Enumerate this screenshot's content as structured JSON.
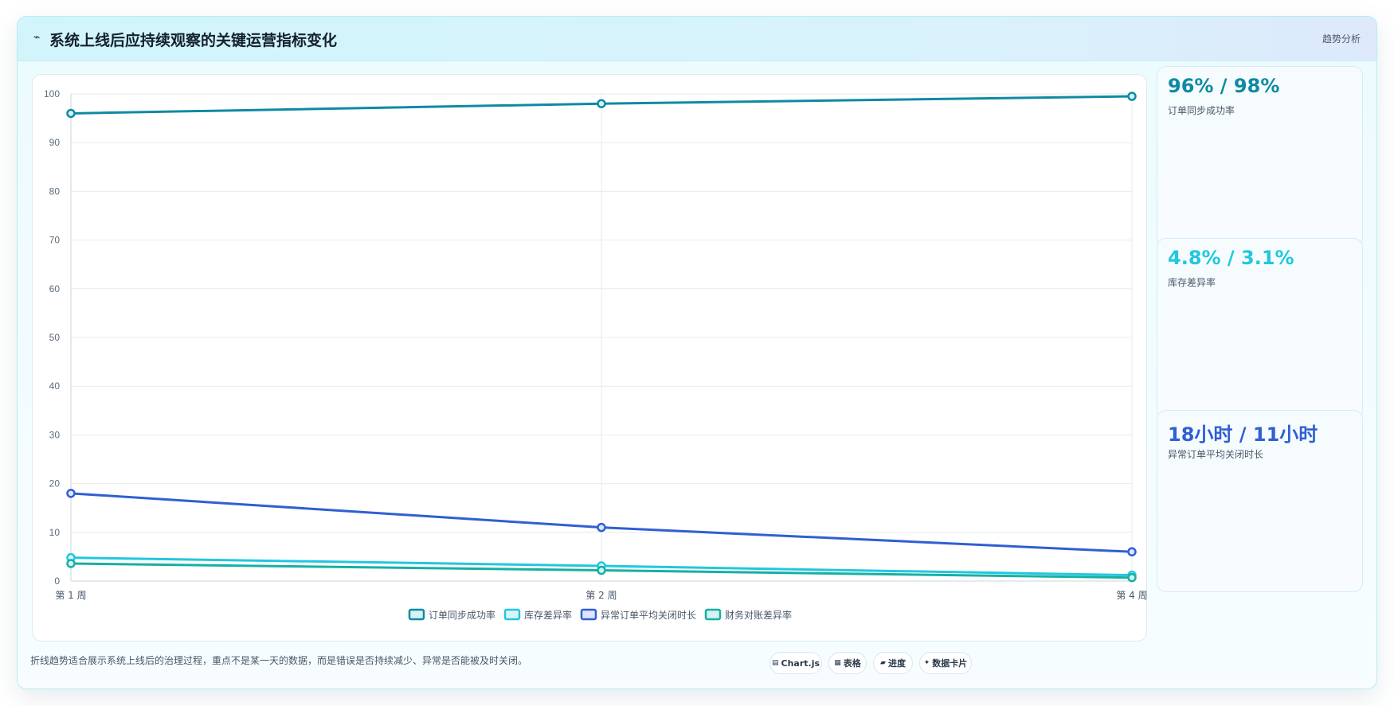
{
  "header": {
    "title": "系统上线后应持续观察的关键运营指标变化",
    "tag": "趋势分析"
  },
  "chart_data": {
    "type": "line",
    "categories": [
      "第 1 周",
      "第 2 周",
      "第 4 周"
    ],
    "ylim": [
      0,
      100
    ],
    "yticks": [
      0,
      10,
      20,
      30,
      40,
      50,
      60,
      70,
      80,
      90,
      100
    ],
    "grid": true,
    "legend": "bottom",
    "series": [
      {
        "name": "订单同步成功率",
        "values": [
          96,
          98,
          99.5
        ],
        "color": "#0e8aa3",
        "fill": "#d8f1f6"
      },
      {
        "name": "库存差异率",
        "values": [
          4.8,
          3.1,
          1.2
        ],
        "color": "#22c7dd",
        "fill": "#d9f7fb"
      },
      {
        "name": "异常订单平均关闭时长",
        "values": [
          18,
          11,
          6
        ],
        "color": "#2f5fd3",
        "fill": "#dde6fa"
      },
      {
        "name": "财务对账差异率",
        "values": [
          3.6,
          2.2,
          0.7
        ],
        "color": "#16b0a3",
        "fill": "#d5f3f0"
      }
    ]
  },
  "kpis": [
    {
      "value": "96% / 98%",
      "label": "订单同步成功率",
      "color": "#0e8aa3"
    },
    {
      "value": "4.8% / 3.1%",
      "label": "库存差异率",
      "color": "#22c7dd"
    },
    {
      "value": "18小时 / 11小时",
      "label": "异常订单平均关闭时长",
      "color": "#2f5fd3"
    }
  ],
  "footer": {
    "note": "折线趋势适合展示系统上线后的治理过程，重点不是某一天的数据，而是错误是否持续减少、异常是否能被及时关闭。",
    "chips": [
      {
        "icon": "▤",
        "label": "Chart.js"
      },
      {
        "icon": "▦",
        "label": "表格"
      },
      {
        "icon": "▰",
        "label": "进度"
      },
      {
        "icon": "✦",
        "label": "数据卡片"
      }
    ]
  }
}
